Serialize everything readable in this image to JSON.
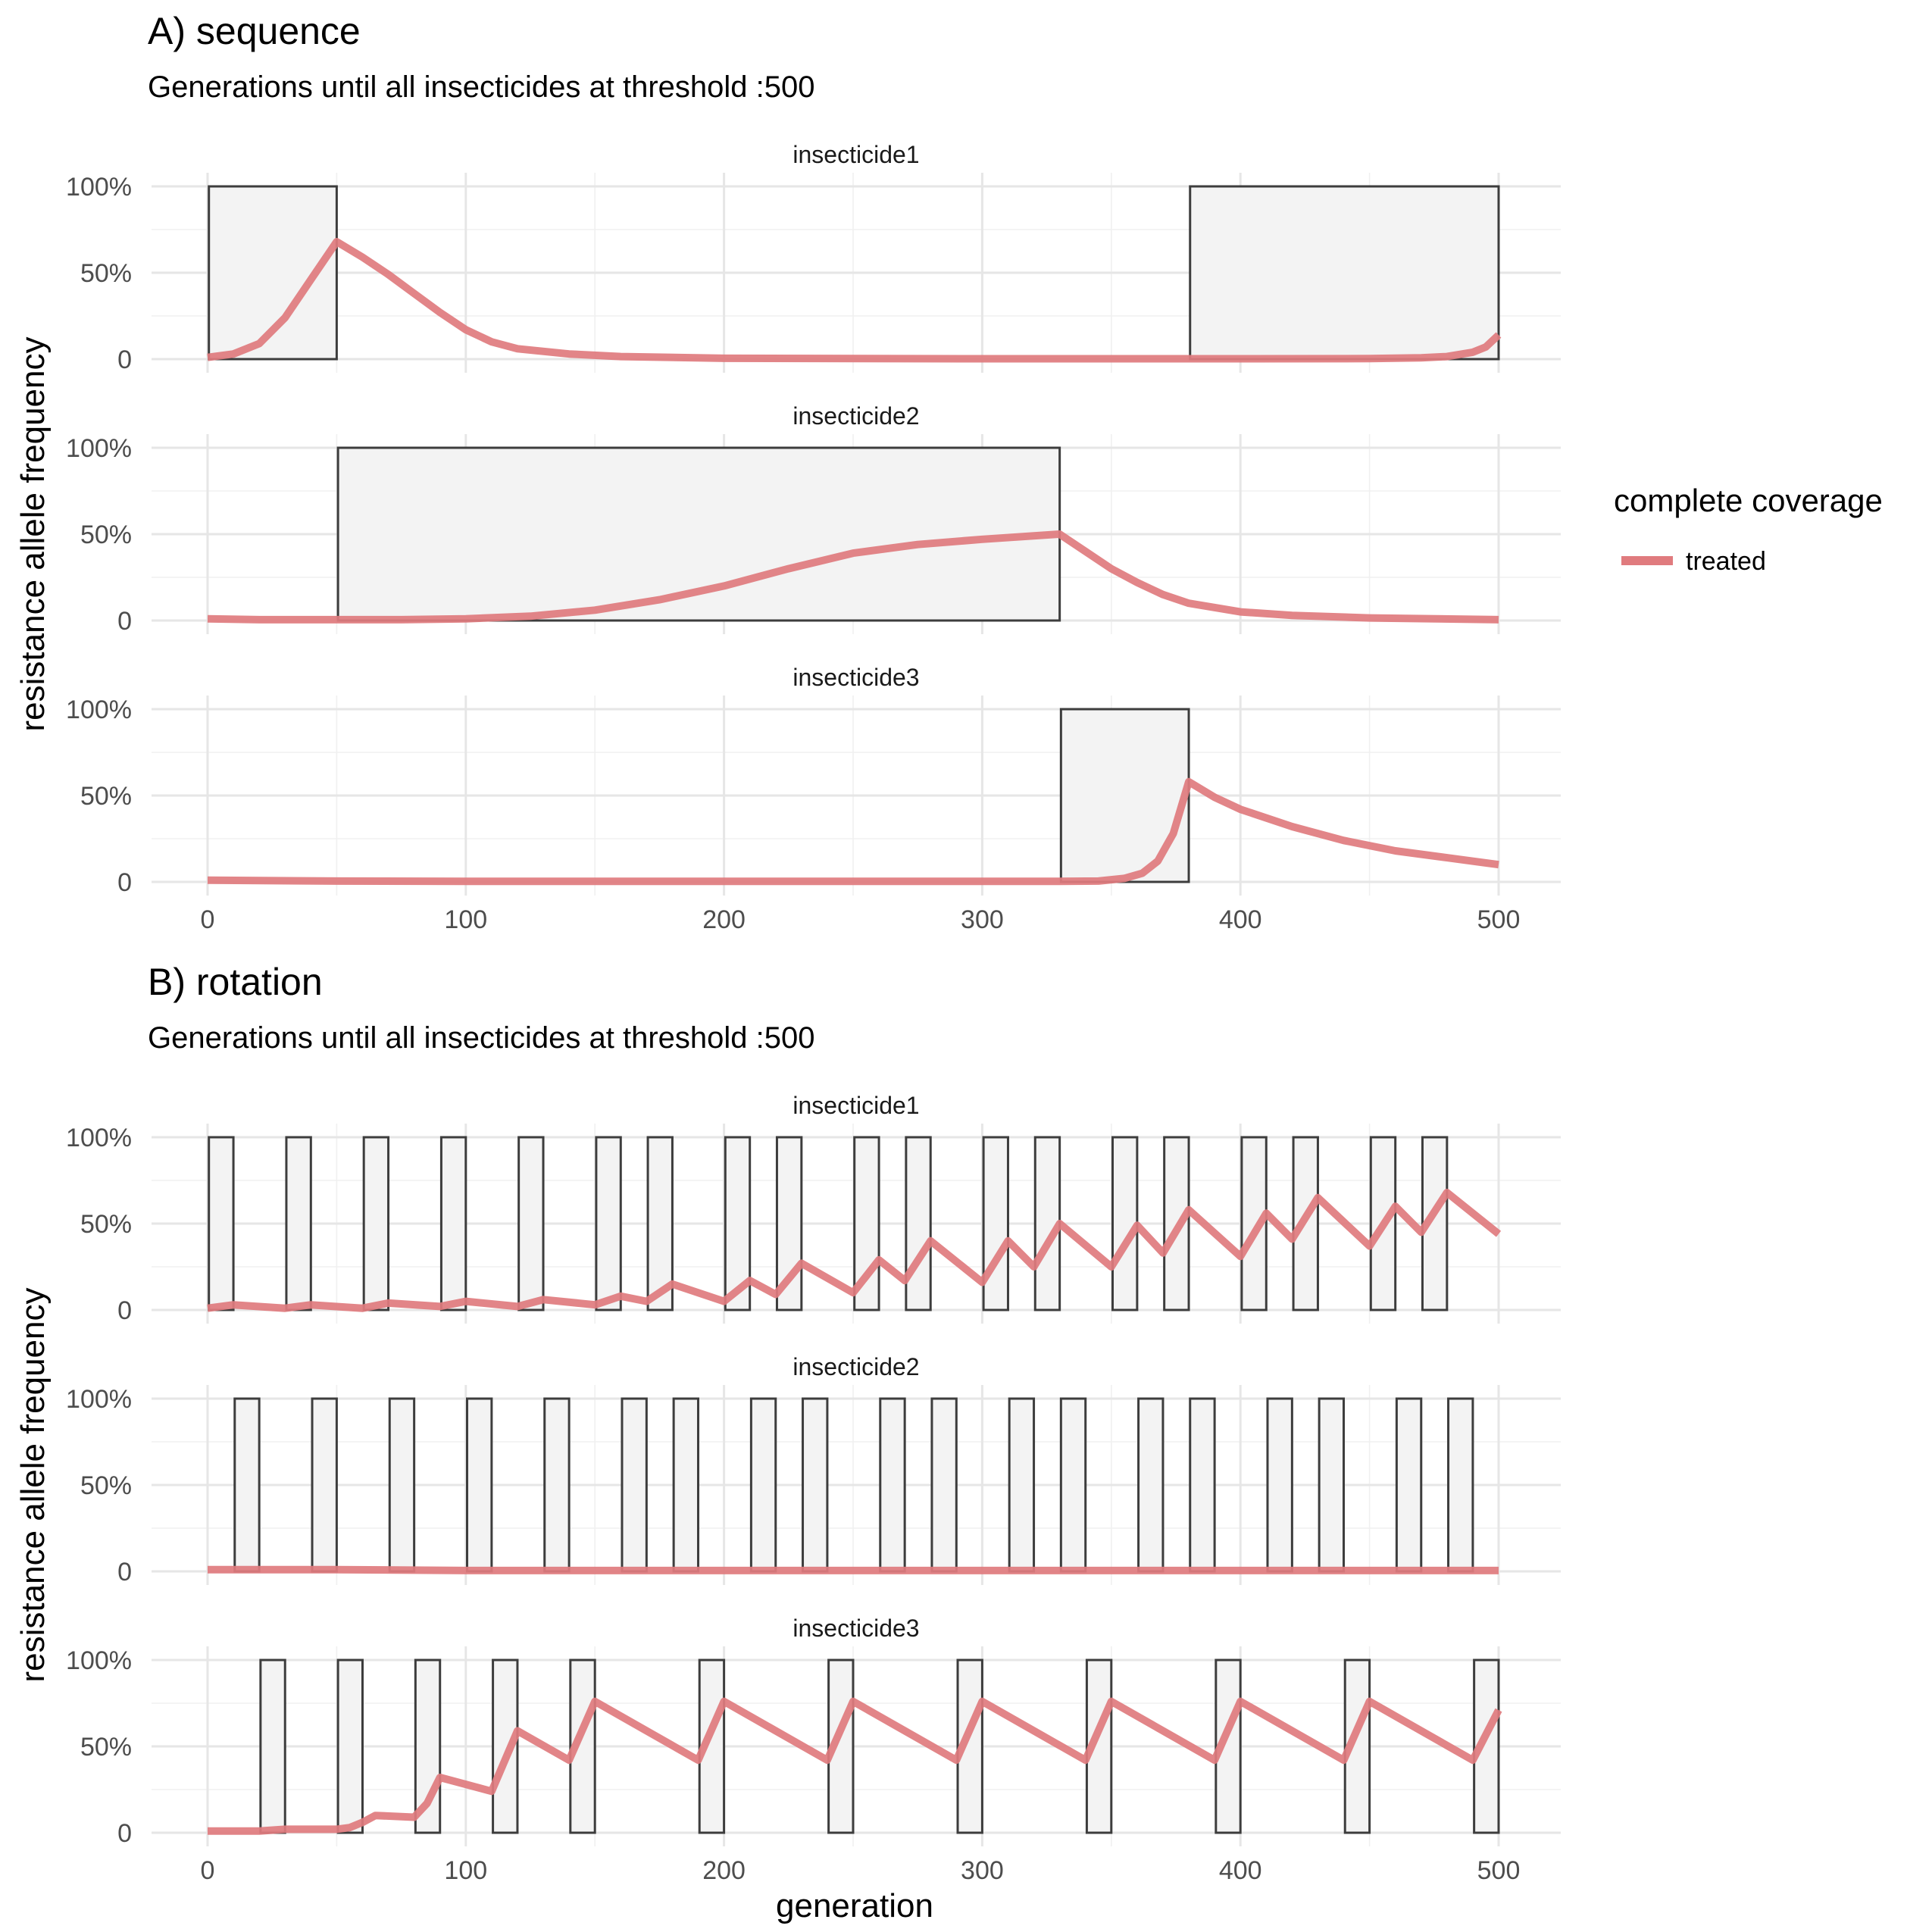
{
  "colors": {
    "treated": "#e07b7e",
    "box_fill": "#f3f3f3",
    "box_stroke": "#3d3d3d"
  },
  "legend": {
    "title": "complete coverage",
    "items": [
      {
        "label": "treated",
        "color": "#e07b7e"
      }
    ]
  },
  "x_label": "generation",
  "chart_data": [
    {
      "type": "line",
      "title": "A) sequence",
      "subtitle": "Generations until all insecticides at threshold :500",
      "xlabel": "",
      "ylabel": "resistance allele frequency",
      "xlim": [
        0,
        500
      ],
      "ylim": [
        0,
        1
      ],
      "x_ticks": [
        0,
        100,
        200,
        300,
        400,
        500
      ],
      "x_tick_labels": [
        "0",
        "100",
        "200",
        "300",
        "400",
        "500"
      ],
      "y_ticks": [
        0,
        0.5,
        1
      ],
      "y_tick_labels": [
        "0",
        "50%",
        "100%"
      ],
      "grid": true,
      "legend_position": "right",
      "series_name": "treated",
      "panels": [
        {
          "label": "insecticide1",
          "deployed_intervals": [
            [
              1,
              50
            ],
            [
              381,
              500
            ]
          ],
          "points": [
            [
              0,
              0.01
            ],
            [
              10,
              0.03
            ],
            [
              20,
              0.09
            ],
            [
              30,
              0.24
            ],
            [
              40,
              0.46
            ],
            [
              50,
              0.68
            ],
            [
              60,
              0.59
            ],
            [
              70,
              0.49
            ],
            [
              80,
              0.38
            ],
            [
              90,
              0.27
            ],
            [
              100,
              0.17
            ],
            [
              110,
              0.1
            ],
            [
              120,
              0.06
            ],
            [
              140,
              0.03
            ],
            [
              160,
              0.015
            ],
            [
              200,
              0.005
            ],
            [
              300,
              0.002
            ],
            [
              400,
              0.002
            ],
            [
              450,
              0.003
            ],
            [
              470,
              0.008
            ],
            [
              480,
              0.015
            ],
            [
              490,
              0.04
            ],
            [
              495,
              0.07
            ],
            [
              500,
              0.14
            ]
          ]
        },
        {
          "label": "insecticide2",
          "deployed_intervals": [
            [
              51,
              330
            ]
          ],
          "points": [
            [
              0,
              0.01
            ],
            [
              20,
              0.005
            ],
            [
              50,
              0.005
            ],
            [
              75,
              0.005
            ],
            [
              100,
              0.01
            ],
            [
              125,
              0.025
            ],
            [
              150,
              0.06
            ],
            [
              175,
              0.12
            ],
            [
              200,
              0.2
            ],
            [
              225,
              0.3
            ],
            [
              250,
              0.39
            ],
            [
              275,
              0.44
            ],
            [
              300,
              0.47
            ],
            [
              330,
              0.5
            ],
            [
              340,
              0.4
            ],
            [
              350,
              0.3
            ],
            [
              360,
              0.22
            ],
            [
              370,
              0.15
            ],
            [
              380,
              0.1
            ],
            [
              400,
              0.05
            ],
            [
              420,
              0.03
            ],
            [
              450,
              0.015
            ],
            [
              500,
              0.005
            ]
          ]
        },
        {
          "label": "insecticide3",
          "deployed_intervals": [
            [
              331,
              380
            ]
          ],
          "points": [
            [
              0,
              0.01
            ],
            [
              50,
              0.005
            ],
            [
              100,
              0.003
            ],
            [
              200,
              0.003
            ],
            [
              300,
              0.003
            ],
            [
              330,
              0.003
            ],
            [
              345,
              0.005
            ],
            [
              355,
              0.02
            ],
            [
              362,
              0.05
            ],
            [
              368,
              0.12
            ],
            [
              374,
              0.28
            ],
            [
              380,
              0.58
            ],
            [
              390,
              0.49
            ],
            [
              400,
              0.42
            ],
            [
              420,
              0.32
            ],
            [
              440,
              0.24
            ],
            [
              460,
              0.18
            ],
            [
              480,
              0.14
            ],
            [
              500,
              0.1
            ]
          ]
        }
      ]
    },
    {
      "type": "line",
      "title": "B) rotation",
      "subtitle": "Generations until all insecticides at threshold :500",
      "xlabel": "generation",
      "ylabel": "resistance allele frequency",
      "xlim": [
        0,
        500
      ],
      "ylim": [
        0,
        1
      ],
      "x_ticks": [
        0,
        100,
        200,
        300,
        400,
        500
      ],
      "x_tick_labels": [
        "0",
        "100",
        "200",
        "300",
        "400",
        "500"
      ],
      "y_ticks": [
        0,
        0.5,
        1
      ],
      "y_tick_labels": [
        "0",
        "50%",
        "100%"
      ],
      "grid": true,
      "legend_position": "right",
      "series_name": "treated",
      "panels": [
        {
          "label": "insecticide1",
          "deployed_intervals": [
            [
              1,
              10
            ],
            [
              31,
              40
            ],
            [
              61,
              70
            ],
            [
              91,
              100
            ],
            [
              121,
              130
            ],
            [
              151,
              160
            ],
            [
              171,
              180
            ],
            [
              201,
              210
            ],
            [
              221,
              230
            ],
            [
              251,
              260
            ],
            [
              271,
              280
            ],
            [
              301,
              310
            ],
            [
              321,
              330
            ],
            [
              351,
              360
            ],
            [
              371,
              380
            ],
            [
              401,
              410
            ],
            [
              421,
              430
            ],
            [
              451,
              460
            ],
            [
              471,
              480
            ]
          ],
          "points": [
            [
              0,
              0.01
            ],
            [
              10,
              0.03
            ],
            [
              30,
              0.01
            ],
            [
              40,
              0.03
            ],
            [
              60,
              0.01
            ],
            [
              70,
              0.04
            ],
            [
              90,
              0.02
            ],
            [
              100,
              0.05
            ],
            [
              120,
              0.02
            ],
            [
              130,
              0.06
            ],
            [
              150,
              0.03
            ],
            [
              160,
              0.08
            ],
            [
              170,
              0.05
            ],
            [
              180,
              0.15
            ],
            [
              200,
              0.05
            ],
            [
              210,
              0.17
            ],
            [
              220,
              0.09
            ],
            [
              230,
              0.27
            ],
            [
              250,
              0.1
            ],
            [
              260,
              0.29
            ],
            [
              270,
              0.17
            ],
            [
              280,
              0.4
            ],
            [
              300,
              0.16
            ],
            [
              310,
              0.4
            ],
            [
              320,
              0.25
            ],
            [
              330,
              0.5
            ],
            [
              350,
              0.25
            ],
            [
              360,
              0.49
            ],
            [
              370,
              0.33
            ],
            [
              380,
              0.58
            ],
            [
              400,
              0.31
            ],
            [
              410,
              0.56
            ],
            [
              420,
              0.41
            ],
            [
              430,
              0.65
            ],
            [
              450,
              0.37
            ],
            [
              460,
              0.6
            ],
            [
              470,
              0.45
            ],
            [
              480,
              0.68
            ],
            [
              500,
              0.44
            ]
          ]
        },
        {
          "label": "insecticide2",
          "deployed_intervals": [
            [
              11,
              20
            ],
            [
              41,
              50
            ],
            [
              71,
              80
            ],
            [
              101,
              110
            ],
            [
              131,
              140
            ],
            [
              161,
              170
            ],
            [
              181,
              190
            ],
            [
              211,
              220
            ],
            [
              231,
              240
            ],
            [
              261,
              270
            ],
            [
              281,
              290
            ],
            [
              311,
              320
            ],
            [
              331,
              340
            ],
            [
              361,
              370
            ],
            [
              381,
              390
            ],
            [
              411,
              420
            ],
            [
              431,
              440
            ],
            [
              461,
              470
            ],
            [
              481,
              490
            ]
          ],
          "points": [
            [
              0,
              0.01
            ],
            [
              50,
              0.01
            ],
            [
              100,
              0.005
            ],
            [
              200,
              0.005
            ],
            [
              300,
              0.005
            ],
            [
              400,
              0.005
            ],
            [
              500,
              0.005
            ]
          ]
        },
        {
          "label": "insecticide3",
          "deployed_intervals": [
            [
              21,
              30
            ],
            [
              51,
              60
            ],
            [
              81,
              90
            ],
            [
              111,
              120
            ],
            [
              141,
              150
            ],
            [
              191,
              200
            ],
            [
              241,
              250
            ],
            [
              291,
              300
            ],
            [
              341,
              350
            ],
            [
              391,
              400
            ],
            [
              441,
              450
            ],
            [
              491,
              500
            ]
          ],
          "points": [
            [
              0,
              0.01
            ],
            [
              20,
              0.01
            ],
            [
              30,
              0.02
            ],
            [
              50,
              0.02
            ],
            [
              55,
              0.03
            ],
            [
              60,
              0.06
            ],
            [
              65,
              0.1
            ],
            [
              80,
              0.09
            ],
            [
              85,
              0.17
            ],
            [
              90,
              0.32
            ],
            [
              110,
              0.24
            ],
            [
              120,
              0.59
            ],
            [
              140,
              0.42
            ],
            [
              150,
              0.76
            ],
            [
              190,
              0.42
            ],
            [
              200,
              0.76
            ],
            [
              240,
              0.42
            ],
            [
              250,
              0.76
            ],
            [
              290,
              0.42
            ],
            [
              300,
              0.76
            ],
            [
              340,
              0.42
            ],
            [
              350,
              0.76
            ],
            [
              390,
              0.42
            ],
            [
              400,
              0.76
            ],
            [
              440,
              0.42
            ],
            [
              450,
              0.76
            ],
            [
              490,
              0.42
            ],
            [
              500,
              0.71
            ]
          ]
        }
      ]
    }
  ]
}
